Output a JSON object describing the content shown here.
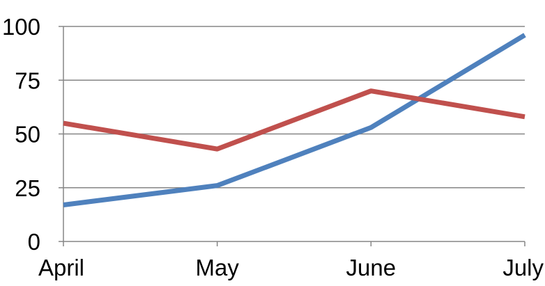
{
  "chart_data": {
    "type": "line",
    "categories": [
      "April",
      "May",
      "June",
      "July"
    ],
    "series": [
      {
        "color": "#4F81BD",
        "values": [
          17,
          26,
          53,
          96
        ]
      },
      {
        "color": "#C0504D",
        "values": [
          55,
          43,
          70,
          58
        ]
      }
    ],
    "y_ticks": [
      0,
      25,
      50,
      75,
      100
    ],
    "ylim": [
      0,
      100
    ],
    "grid": true,
    "legend": "none",
    "title": "",
    "xlabel": "",
    "ylabel": ""
  }
}
